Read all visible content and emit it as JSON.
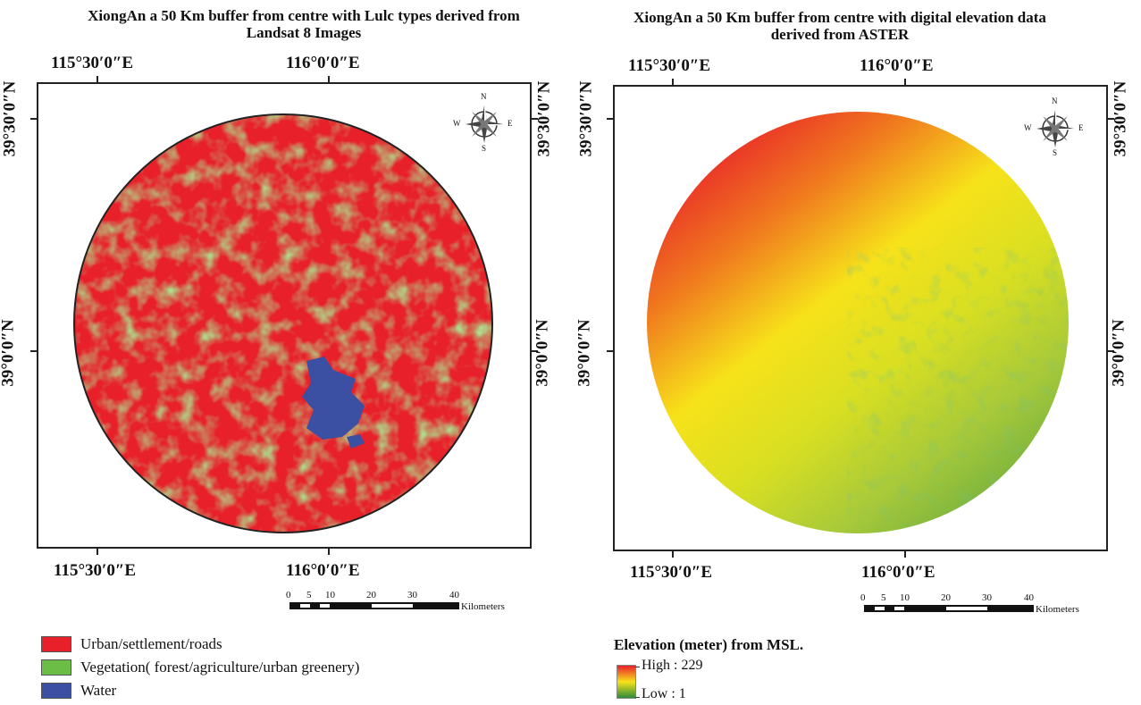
{
  "left_map": {
    "title": "XiongAn a 50 Km buffer from centre with Lulc types derived from Landsat 8 Images",
    "lon_labels": [
      "115°30′0″E",
      "116°0′0″E"
    ],
    "lat_labels": [
      "39°30′0″N",
      "39°0′0″N"
    ],
    "compass": {
      "n": "N",
      "s": "S",
      "e": "E",
      "w": "W"
    },
    "scale": {
      "ticks": [
        "0",
        "5",
        "10",
        "20",
        "30",
        "40"
      ],
      "unit": "Kilometers"
    },
    "legend": [
      {
        "label": "Urban/settlement/roads",
        "color": "#e8202a"
      },
      {
        "label": "Vegetation( forest/agriculture/urban greenery)",
        "color": "#6cbd45"
      },
      {
        "label": "Water",
        "color": "#3b4fa3"
      }
    ]
  },
  "right_map": {
    "title": "XiongAn a 50 Km buffer from centre with digital elevation data derived from ASTER",
    "lon_labels": [
      "115°30′0″E",
      "116°0′0″E"
    ],
    "lat_labels": [
      "39°30′0″N",
      "39°0′0″N"
    ],
    "compass": {
      "n": "N",
      "s": "S",
      "e": "E",
      "w": "W"
    },
    "scale": {
      "ticks": [
        "0",
        "5",
        "10",
        "20",
        "30",
        "40"
      ],
      "unit": "Kilometers"
    },
    "legend": {
      "title": "Elevation (meter) from MSL.",
      "high_label": "High : 229",
      "low_label": "Low : 1",
      "colors": [
        "#e8202a",
        "#f7e21a",
        "#2e8b3a"
      ]
    }
  }
}
